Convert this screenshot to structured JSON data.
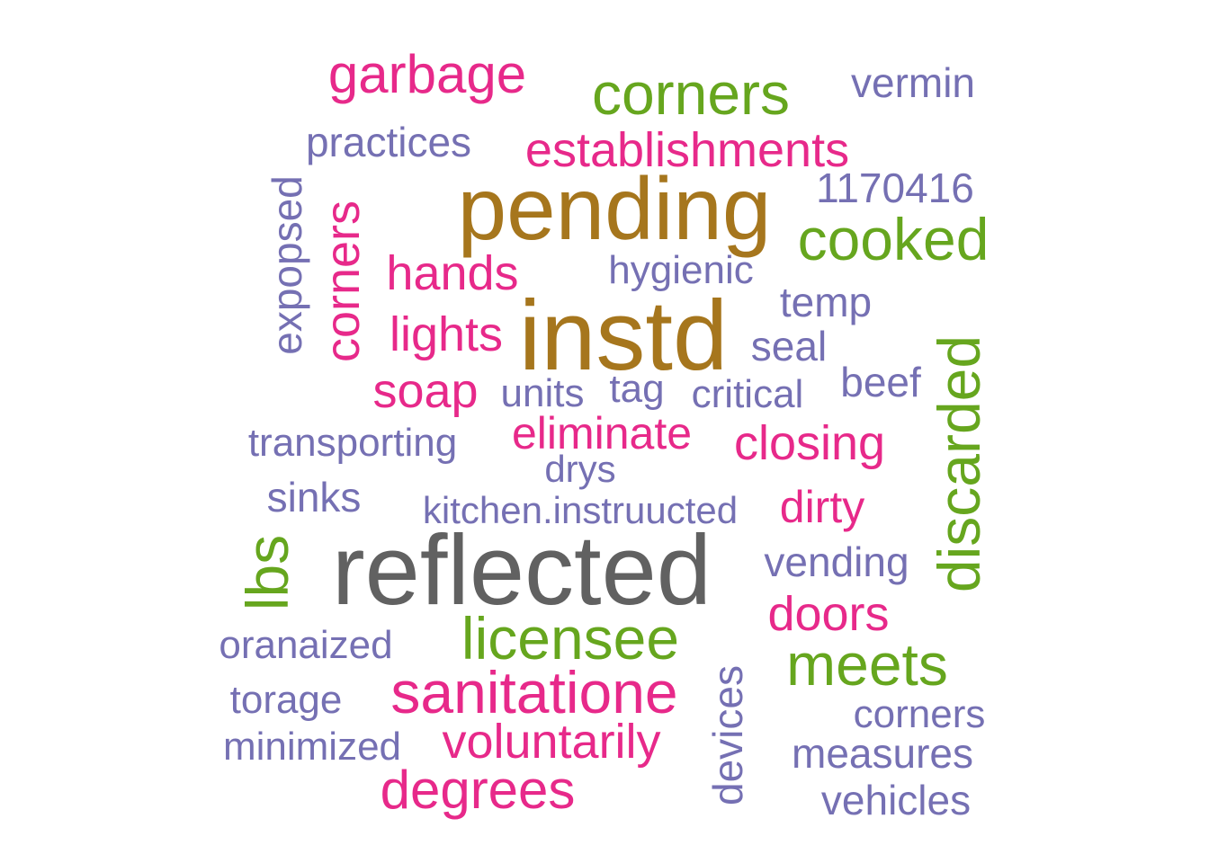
{
  "colors": {
    "grey": "#616161",
    "brown": "#A6761D",
    "green": "#66A61E",
    "pink": "#E7298A",
    "purple": "#7570B3"
  },
  "words": {
    "garbage": "garbage",
    "corners_top": "corners",
    "vermin": "vermin",
    "practices": "practices",
    "establishments": "establishments",
    "exposed": "expopsed",
    "corners_vertical": "corners",
    "pending": "pending",
    "n1170416": "1170416",
    "cooked": "cooked",
    "hands": "hands",
    "hygienic": "hygienic",
    "temp": "temp",
    "instd": "instd",
    "lights": "lights",
    "seal": "seal",
    "discarded": "discarded",
    "soap": "soap",
    "units": "units",
    "tag": "tag",
    "critical": "critical",
    "beef": "beef",
    "transporting": "transporting",
    "eliminate": "eliminate",
    "closing": "closing",
    "drys": "drys",
    "sinks": "sinks",
    "kitchen_instruucted": "kitchen.instruucted",
    "dirty": "dirty",
    "lbs": "lbs",
    "reflected": "reflected",
    "vending": "vending",
    "doors": "doors",
    "licensee": "licensee",
    "oranaized": "oranaized",
    "meets": "meets",
    "devices": "devices",
    "sanitatione": "sanitatione",
    "torage": "torage",
    "corners_small": "corners",
    "minimized": "minimized",
    "voluntarily": "voluntarily",
    "measures": "measures",
    "degrees": "degrees",
    "vehicles": "vehicles"
  }
}
